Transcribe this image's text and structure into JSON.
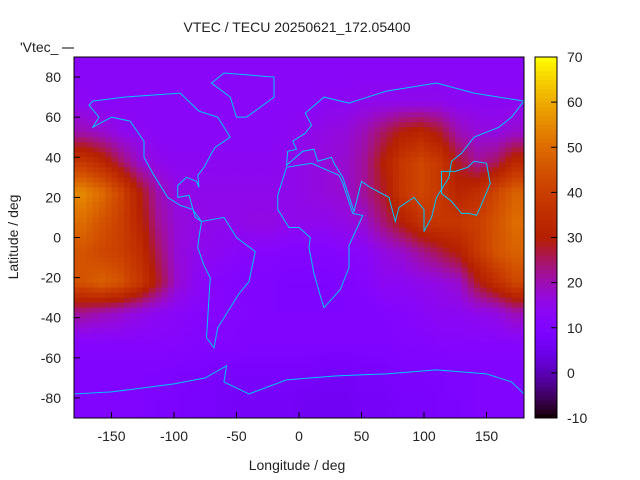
{
  "chart_data": {
    "type": "heatmap",
    "title": "VTEC / TECU 20250621_172.05400",
    "xlabel": "Longitude / deg",
    "ylabel": "Latitude / deg",
    "legend_label": "'Vtec_",
    "xlim": [
      -180,
      180
    ],
    "ylim": [
      -90,
      90
    ],
    "xticks": [
      -150,
      -100,
      -50,
      0,
      50,
      100,
      150
    ],
    "yticks": [
      -80,
      -60,
      -40,
      -20,
      0,
      20,
      40,
      60,
      80
    ],
    "cbrange": [
      -10,
      70
    ],
    "cbticks": [
      -10,
      0,
      10,
      20,
      30,
      40,
      50,
      60,
      70
    ],
    "palette": "rgbformulae 7,5,15",
    "coastline_color": "#00c8ff",
    "lon_centers": [
      -172.5,
      -157.5,
      -142.5,
      -127.5,
      -112.5,
      -97.5,
      -82.5,
      -67.5,
      -52.5,
      -37.5,
      -22.5,
      -7.5,
      7.5,
      22.5,
      37.5,
      52.5,
      67.5,
      82.5,
      97.5,
      112.5,
      127.5,
      142.5,
      157.5,
      172.5
    ],
    "lat_centers": [
      82.5,
      67.5,
      52.5,
      37.5,
      22.5,
      7.5,
      -7.5,
      -22.5,
      -37.5,
      -52.5,
      -67.5,
      -82.5
    ],
    "values": [
      [
        13,
        13,
        13,
        13,
        13,
        13,
        13,
        13,
        13,
        13,
        13,
        13,
        13,
        13,
        13,
        13,
        13,
        13,
        13,
        13,
        13,
        13,
        13,
        13
      ],
      [
        14,
        13,
        13,
        13,
        13,
        13,
        13,
        13,
        13,
        13,
        13,
        13,
        13,
        14,
        14,
        15,
        15,
        15,
        15,
        15,
        14,
        14,
        14,
        14
      ],
      [
        20,
        18,
        15,
        14,
        13,
        13,
        13,
        13,
        13,
        13,
        13,
        14,
        15,
        16,
        17,
        20,
        25,
        30,
        32,
        28,
        20,
        17,
        16,
        18
      ],
      [
        38,
        33,
        25,
        18,
        15,
        14,
        14,
        14,
        14,
        14,
        14,
        15,
        16,
        17,
        18,
        22,
        30,
        38,
        42,
        38,
        28,
        22,
        25,
        33
      ],
      [
        55,
        50,
        42,
        30,
        20,
        16,
        15,
        15,
        15,
        15,
        15,
        15,
        16,
        17,
        18,
        22,
        28,
        38,
        42,
        38,
        32,
        35,
        42,
        48
      ],
      [
        50,
        45,
        40,
        32,
        22,
        17,
        16,
        15,
        15,
        16,
        16,
        15,
        15,
        15,
        16,
        18,
        24,
        30,
        36,
        38,
        38,
        40,
        45,
        50
      ],
      [
        45,
        42,
        40,
        35,
        25,
        17,
        15,
        14,
        13,
        12,
        12,
        11,
        11,
        11,
        12,
        13,
        16,
        18,
        22,
        26,
        30,
        38,
        45,
        48
      ],
      [
        45,
        48,
        45,
        38,
        28,
        18,
        14,
        12,
        11,
        10,
        10,
        9,
        9,
        9,
        10,
        12,
        14,
        14,
        15,
        16,
        18,
        28,
        35,
        42
      ],
      [
        22,
        20,
        18,
        16,
        14,
        13,
        12,
        12,
        11,
        11,
        10,
        10,
        10,
        10,
        10,
        10,
        11,
        12,
        13,
        14,
        14,
        15,
        16,
        20
      ],
      [
        12,
        12,
        12,
        12,
        12,
        12,
        11,
        11,
        11,
        10,
        10,
        10,
        10,
        10,
        10,
        10,
        10,
        11,
        11,
        12,
        12,
        12,
        12,
        12
      ],
      [
        10,
        10,
        10,
        10,
        10,
        9,
        9,
        8,
        8,
        8,
        8,
        8,
        8,
        7,
        7,
        8,
        8,
        9,
        9,
        9,
        10,
        10,
        10,
        10
      ],
      [
        10,
        10,
        10,
        10,
        9,
        9,
        8,
        8,
        7,
        7,
        7,
        7,
        6,
        6,
        6,
        7,
        7,
        8,
        8,
        9,
        9,
        10,
        10,
        10
      ]
    ]
  }
}
